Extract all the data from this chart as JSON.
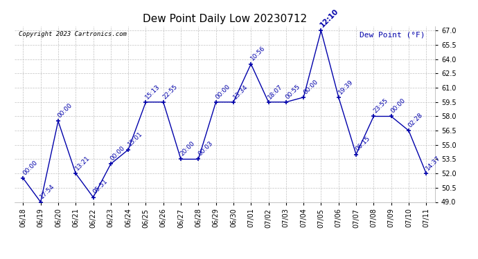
{
  "title": "Dew Point Daily Low 20230712",
  "copyright": "Copyright 2023 Cartronics.com",
  "legend_label": "Dew Point (°F)",
  "background_color": "#ffffff",
  "line_color": "#0000aa",
  "grid_color": "#c0c0c0",
  "ylim": [
    49.0,
    67.5
  ],
  "yticks": [
    49.0,
    50.5,
    52.0,
    53.5,
    55.0,
    56.5,
    58.0,
    59.5,
    61.0,
    62.5,
    64.0,
    65.5,
    67.0
  ],
  "dates": [
    "06/18",
    "06/19",
    "06/20",
    "06/21",
    "06/22",
    "06/23",
    "06/24",
    "06/25",
    "06/26",
    "06/27",
    "06/28",
    "06/29",
    "06/30",
    "07/01",
    "07/02",
    "07/03",
    "07/04",
    "07/05",
    "07/06",
    "07/07",
    "07/08",
    "07/09",
    "07/10",
    "07/11"
  ],
  "values": [
    51.5,
    49.0,
    57.5,
    52.0,
    49.5,
    53.0,
    54.5,
    59.5,
    59.5,
    53.5,
    53.5,
    59.5,
    59.5,
    63.5,
    59.5,
    59.5,
    60.0,
    67.0,
    60.0,
    54.0,
    58.0,
    58.0,
    56.5,
    52.0
  ],
  "labels": [
    "00:00",
    "17:54",
    "00:00",
    "13:21",
    "05:51",
    "00:00",
    "15:01",
    "15:13",
    "22:55",
    "20:00",
    "00:03",
    "00:00",
    "13:34",
    "10:56",
    "18:07",
    "00:55",
    "00:00",
    "12:10",
    "19:39",
    "06:15",
    "23:55",
    "00:00",
    "02:28",
    "14:37"
  ],
  "bold_idx": 17,
  "title_fontsize": 11,
  "tick_label_fontsize": 7,
  "annot_fontsize": 6.5
}
